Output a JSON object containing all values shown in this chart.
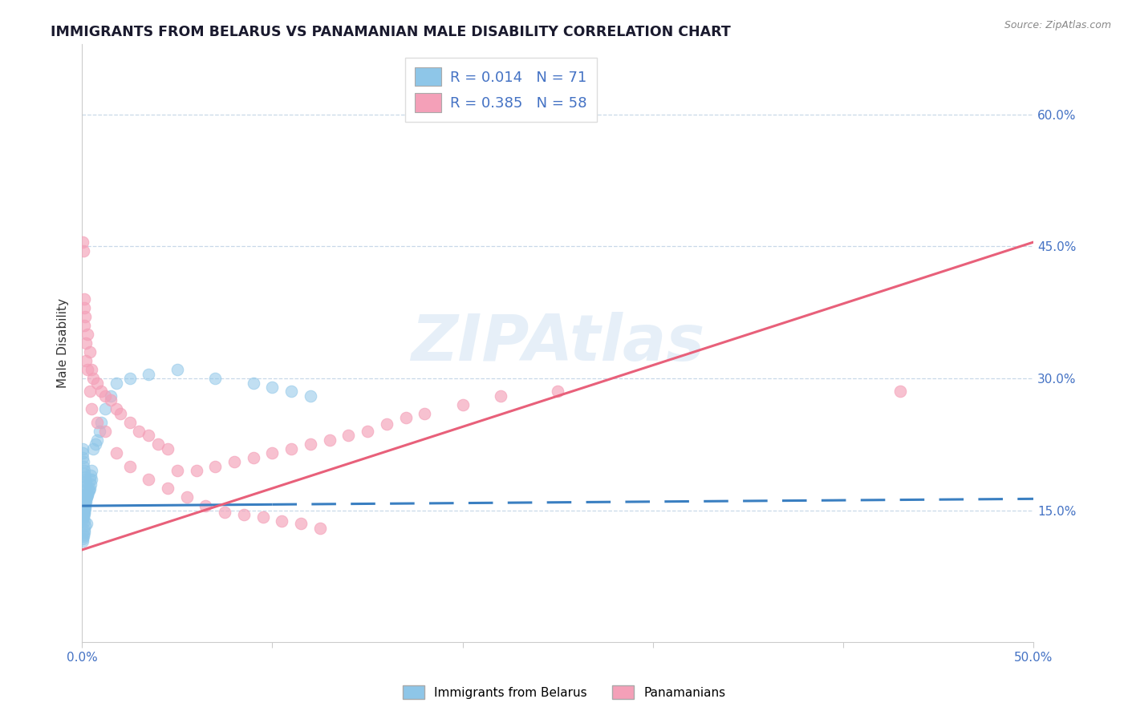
{
  "title": "IMMIGRANTS FROM BELARUS VS PANAMANIAN MALE DISABILITY CORRELATION CHART",
  "source": "Source: ZipAtlas.com",
  "ylabel": "Male Disability",
  "xlim": [
    0.0,
    0.5
  ],
  "ylim": [
    0.0,
    0.68
  ],
  "ytick_positions": [
    0.15,
    0.3,
    0.45,
    0.6
  ],
  "right_ytick_labels": [
    "15.0%",
    "30.0%",
    "45.0%",
    "60.0%"
  ],
  "xtick_positions": [
    0.0,
    0.1,
    0.2,
    0.3,
    0.4,
    0.5
  ],
  "xtick_labels": [
    "0.0%",
    "",
    "",
    "",
    "",
    "50.0%"
  ],
  "blue_color": "#8ec6e8",
  "pink_color": "#f4a0b8",
  "blue_line_color": "#3a7fc1",
  "pink_line_color": "#e8607a",
  "grid_color": "#c8d8e8",
  "legend_r_blue": "0.014",
  "legend_n_blue": "71",
  "legend_r_pink": "0.385",
  "legend_n_pink": "58",
  "watermark": "ZIPAtlas",
  "blue_label": "Immigrants from Belarus",
  "pink_label": "Panamanians",
  "blue_scatter_x": [
    0.0005,
    0.0008,
    0.001,
    0.0012,
    0.0015,
    0.001,
    0.0008,
    0.0006,
    0.001,
    0.0012,
    0.0015,
    0.0018,
    0.002,
    0.0022,
    0.0025,
    0.002,
    0.0018,
    0.0015,
    0.0012,
    0.001,
    0.0008,
    0.0006,
    0.0004,
    0.0003,
    0.0025,
    0.003,
    0.0035,
    0.003,
    0.0028,
    0.0022,
    0.002,
    0.0018,
    0.0015,
    0.0012,
    0.001,
    0.0008,
    0.0006,
    0.0004,
    0.0003,
    0.0002,
    0.004,
    0.0045,
    0.005,
    0.005,
    0.0045,
    0.004,
    0.0035,
    0.003,
    0.0025,
    0.002,
    0.0015,
    0.001,
    0.0008,
    0.0006,
    0.0004,
    0.006,
    0.007,
    0.008,
    0.009,
    0.01,
    0.012,
    0.015,
    0.018,
    0.025,
    0.035,
    0.05,
    0.07,
    0.09,
    0.1,
    0.11,
    0.12
  ],
  "blue_scatter_y": [
    0.14,
    0.143,
    0.146,
    0.149,
    0.152,
    0.138,
    0.142,
    0.145,
    0.148,
    0.151,
    0.154,
    0.157,
    0.16,
    0.163,
    0.135,
    0.168,
    0.172,
    0.132,
    0.128,
    0.125,
    0.122,
    0.12,
    0.118,
    0.115,
    0.165,
    0.17,
    0.173,
    0.168,
    0.175,
    0.178,
    0.182,
    0.185,
    0.188,
    0.192,
    0.195,
    0.2,
    0.205,
    0.21,
    0.215,
    0.22,
    0.185,
    0.19,
    0.195,
    0.185,
    0.18,
    0.175,
    0.172,
    0.168,
    0.165,
    0.162,
    0.16,
    0.158,
    0.155,
    0.153,
    0.15,
    0.22,
    0.225,
    0.23,
    0.24,
    0.25,
    0.265,
    0.28,
    0.295,
    0.3,
    0.305,
    0.31,
    0.3,
    0.295,
    0.29,
    0.285,
    0.28
  ],
  "pink_scatter_x": [
    0.0005,
    0.0008,
    0.001,
    0.0012,
    0.0015,
    0.001,
    0.002,
    0.003,
    0.004,
    0.005,
    0.006,
    0.008,
    0.01,
    0.012,
    0.015,
    0.018,
    0.02,
    0.025,
    0.03,
    0.035,
    0.04,
    0.045,
    0.05,
    0.06,
    0.07,
    0.08,
    0.09,
    0.1,
    0.11,
    0.12,
    0.13,
    0.14,
    0.15,
    0.16,
    0.17,
    0.18,
    0.2,
    0.22,
    0.25,
    0.003,
    0.005,
    0.008,
    0.012,
    0.018,
    0.025,
    0.035,
    0.045,
    0.055,
    0.065,
    0.075,
    0.085,
    0.095,
    0.105,
    0.115,
    0.125,
    0.43,
    0.002,
    0.004
  ],
  "pink_scatter_y": [
    0.455,
    0.445,
    0.39,
    0.38,
    0.37,
    0.36,
    0.34,
    0.35,
    0.33,
    0.31,
    0.3,
    0.295,
    0.285,
    0.28,
    0.275,
    0.265,
    0.26,
    0.25,
    0.24,
    0.235,
    0.225,
    0.22,
    0.195,
    0.195,
    0.2,
    0.205,
    0.21,
    0.215,
    0.22,
    0.225,
    0.23,
    0.235,
    0.24,
    0.248,
    0.255,
    0.26,
    0.27,
    0.28,
    0.285,
    0.31,
    0.265,
    0.25,
    0.24,
    0.215,
    0.2,
    0.185,
    0.175,
    0.165,
    0.155,
    0.148,
    0.145,
    0.142,
    0.138,
    0.135,
    0.13,
    0.285,
    0.32,
    0.285
  ],
  "blue_trend_x": [
    0.0,
    0.5
  ],
  "blue_trend_y": [
    0.155,
    0.163
  ],
  "pink_trend_x": [
    0.0,
    0.5
  ],
  "pink_trend_y": [
    0.105,
    0.455
  ],
  "blue_trend_solid_end": 0.1,
  "background_color": "#ffffff",
  "title_color": "#1a1a2e",
  "label_color": "#4472c4",
  "title_fontsize": 12.5,
  "axis_label_fontsize": 11,
  "tick_fontsize": 11,
  "legend_fontsize": 13
}
